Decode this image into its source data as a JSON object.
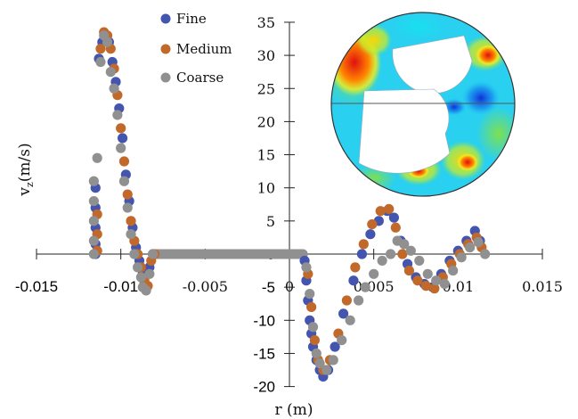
{
  "chart_data": {
    "type": "scatter",
    "title": "",
    "xlabel": "r (m)",
    "ylabel_main": "v",
    "ylabel_sub": "z",
    "ylabel_unit": "(m/s)",
    "xlim": [
      -0.015,
      0.015
    ],
    "ylim": [
      -20,
      35
    ],
    "x_ticks": [
      -0.015,
      -0.01,
      -0.005,
      0,
      0.005,
      0.01,
      0.015
    ],
    "x_tick_labels": [
      "-0.015",
      "-0.01",
      "-0.005",
      "0",
      "0.005",
      "0.01",
      "0.015"
    ],
    "y_ticks": [
      35,
      30,
      25,
      20,
      15,
      10,
      5,
      0,
      -5,
      -10,
      -15,
      -20
    ],
    "y_tick_labels": [
      "35",
      "30",
      "25",
      "20",
      "15",
      "10",
      "5",
      "0",
      "-5",
      "-10",
      "-15",
      "-20"
    ],
    "grid": false,
    "legend": "top-left",
    "series": [
      {
        "name": "Fine",
        "color": "#4455b0",
        "points": [
          [
            -0.0115,
            0
          ],
          [
            -0.0115,
            1.5
          ],
          [
            -0.0115,
            4
          ],
          [
            -0.0115,
            7
          ],
          [
            -0.0115,
            10
          ],
          [
            -0.0113,
            29.5
          ],
          [
            -0.0111,
            32
          ],
          [
            -0.0109,
            33
          ],
          [
            -0.0107,
            32
          ],
          [
            -0.0105,
            29
          ],
          [
            -0.0103,
            26
          ],
          [
            -0.0101,
            22
          ],
          [
            -0.0099,
            17.5
          ],
          [
            -0.0097,
            12
          ],
          [
            -0.0095,
            8
          ],
          [
            -0.0093,
            4
          ],
          [
            -0.0091,
            1
          ],
          [
            -0.0089,
            -1
          ],
          [
            -0.0087,
            -3
          ],
          [
            -0.0086,
            -4.5
          ],
          [
            -0.0085,
            -5
          ],
          [
            -0.0083,
            -2
          ],
          [
            -0.0081,
            0
          ],
          [
            0.0009,
            -1
          ],
          [
            0.001,
            -4
          ],
          [
            0.0011,
            -7
          ],
          [
            0.0012,
            -10
          ],
          [
            0.0013,
            -12
          ],
          [
            0.0014,
            -14
          ],
          [
            0.0016,
            -16
          ],
          [
            0.0018,
            -17.5
          ],
          [
            0.002,
            -18.5
          ],
          [
            0.0023,
            -17.5
          ],
          [
            0.0027,
            -14
          ],
          [
            0.0032,
            -9
          ],
          [
            0.0038,
            -4
          ],
          [
            0.0043,
            0
          ],
          [
            0.0048,
            3
          ],
          [
            0.0053,
            5
          ],
          [
            0.0058,
            6.5
          ],
          [
            0.0062,
            5.5
          ],
          [
            0.0066,
            2
          ],
          [
            0.007,
            -1.5
          ],
          [
            0.0075,
            -3.5
          ],
          [
            0.008,
            -4.5
          ],
          [
            0.0085,
            -5
          ],
          [
            0.009,
            -3
          ],
          [
            0.0095,
            -1
          ],
          [
            0.01,
            0.5
          ],
          [
            0.0105,
            2
          ],
          [
            0.011,
            3.5
          ],
          [
            0.0113,
            2
          ]
        ]
      },
      {
        "name": "Medium",
        "color": "#c0692a",
        "points": [
          [
            -0.0114,
            0.5
          ],
          [
            -0.0114,
            3
          ],
          [
            -0.0114,
            6
          ],
          [
            -0.0112,
            31
          ],
          [
            -0.011,
            33.5
          ],
          [
            -0.0108,
            33
          ],
          [
            -0.0106,
            31
          ],
          [
            -0.0104,
            28
          ],
          [
            -0.0102,
            24
          ],
          [
            -0.01,
            19
          ],
          [
            -0.0098,
            14
          ],
          [
            -0.0096,
            9
          ],
          [
            -0.0094,
            5
          ],
          [
            -0.0092,
            2
          ],
          [
            -0.009,
            0
          ],
          [
            -0.0088,
            -2
          ],
          [
            -0.0086,
            -4
          ],
          [
            -0.0084,
            -4.8
          ],
          [
            -0.0082,
            -1
          ],
          [
            -0.008,
            0
          ],
          [
            0.0011,
            -3
          ],
          [
            0.0013,
            -8
          ],
          [
            0.0015,
            -13
          ],
          [
            0.0017,
            -16
          ],
          [
            0.002,
            -17.5
          ],
          [
            0.0024,
            -16
          ],
          [
            0.0029,
            -12
          ],
          [
            0.0034,
            -7
          ],
          [
            0.0039,
            -2
          ],
          [
            0.0044,
            1.5
          ],
          [
            0.0049,
            4.5
          ],
          [
            0.0054,
            6.5
          ],
          [
            0.0059,
            6.8
          ],
          [
            0.0063,
            4
          ],
          [
            0.0067,
            0
          ],
          [
            0.0071,
            -2.5
          ],
          [
            0.0076,
            -4
          ],
          [
            0.0081,
            -4.8
          ],
          [
            0.0086,
            -5.2
          ],
          [
            0.0091,
            -3.5
          ],
          [
            0.0096,
            -1.5
          ],
          [
            0.0101,
            0
          ],
          [
            0.0106,
            1.5
          ],
          [
            0.0111,
            2.5
          ],
          [
            0.0114,
            1
          ]
        ]
      },
      {
        "name": "Coarse",
        "color": "#909090",
        "points": [
          [
            -0.0116,
            0
          ],
          [
            -0.0116,
            2
          ],
          [
            -0.0116,
            5
          ],
          [
            -0.0116,
            8
          ],
          [
            -0.0116,
            11
          ],
          [
            -0.0114,
            14.5
          ],
          [
            -0.0112,
            29
          ],
          [
            -0.011,
            33
          ],
          [
            -0.0108,
            32
          ],
          [
            -0.0106,
            27.5
          ],
          [
            -0.0104,
            25
          ],
          [
            -0.0102,
            21
          ],
          [
            -0.01,
            16
          ],
          [
            -0.0098,
            11
          ],
          [
            -0.0096,
            7
          ],
          [
            -0.0094,
            3
          ],
          [
            -0.0092,
            0
          ],
          [
            -0.009,
            -2
          ],
          [
            -0.0088,
            -3.5
          ],
          [
            -0.0087,
            -5
          ],
          [
            -0.0085,
            -5.5
          ],
          [
            -0.0083,
            -3
          ],
          [
            -0.0081,
            0
          ],
          [
            0.001,
            -2
          ],
          [
            0.0012,
            -6
          ],
          [
            0.0014,
            -11
          ],
          [
            0.0016,
            -15
          ],
          [
            0.0018,
            -16.5
          ],
          [
            0.0022,
            -17.5
          ],
          [
            0.0026,
            -16
          ],
          [
            0.0031,
            -13
          ],
          [
            0.0036,
            -10
          ],
          [
            0.0041,
            -7
          ],
          [
            0.0045,
            -5
          ],
          [
            0.005,
            -3
          ],
          [
            0.0055,
            -1
          ],
          [
            0.006,
            0
          ],
          [
            0.0064,
            2
          ],
          [
            0.0068,
            1.5
          ],
          [
            0.0072,
            0.5
          ],
          [
            0.0077,
            -1
          ],
          [
            0.0082,
            -3
          ],
          [
            0.0087,
            -4
          ],
          [
            0.0092,
            -4.5
          ],
          [
            0.0097,
            -2.5
          ],
          [
            0.0102,
            -0.5
          ],
          [
            0.0107,
            1
          ],
          [
            0.0112,
            1.8
          ],
          [
            0.0116,
            0
          ]
        ]
      }
    ],
    "zero_line": {
      "color": "#909090",
      "x_start": -0.008,
      "x_end": 0.0008,
      "y": 0
    }
  },
  "inset": {
    "description_icon": "velocity-contour-inset"
  }
}
